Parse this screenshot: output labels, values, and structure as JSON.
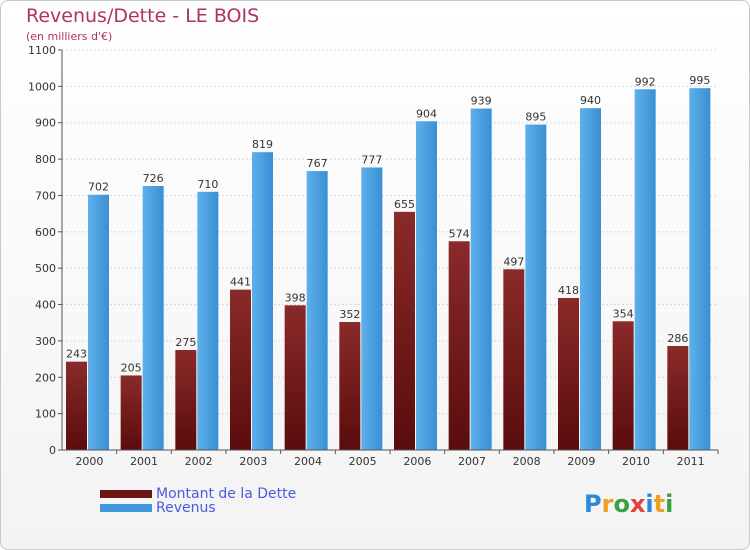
{
  "chart_data": {
    "type": "bar",
    "title": "Revenus/Dette - LE BOIS",
    "subtitle": "(en milliers d'€)",
    "categories": [
      "2000",
      "2001",
      "2002",
      "2003",
      "2004",
      "2005",
      "2006",
      "2007",
      "2008",
      "2009",
      "2010",
      "2011"
    ],
    "series": [
      {
        "name": "Montant de la Dette",
        "color": "#7a1f1f",
        "values": [
          243,
          205,
          275,
          441,
          398,
          352,
          655,
          574,
          497,
          418,
          354,
          286
        ]
      },
      {
        "name": "Revenus",
        "color": "#3f97dc",
        "values": [
          702,
          726,
          710,
          819,
          767,
          777,
          904,
          939,
          895,
          940,
          992,
          995
        ]
      }
    ],
    "ylim": [
      0,
      1100
    ],
    "yticks": [
      0,
      100,
      200,
      300,
      400,
      500,
      600,
      700,
      800,
      900,
      1000,
      1100
    ],
    "grid": true,
    "legend": "bottom-left"
  },
  "logo": {
    "text": "Proxiti"
  }
}
